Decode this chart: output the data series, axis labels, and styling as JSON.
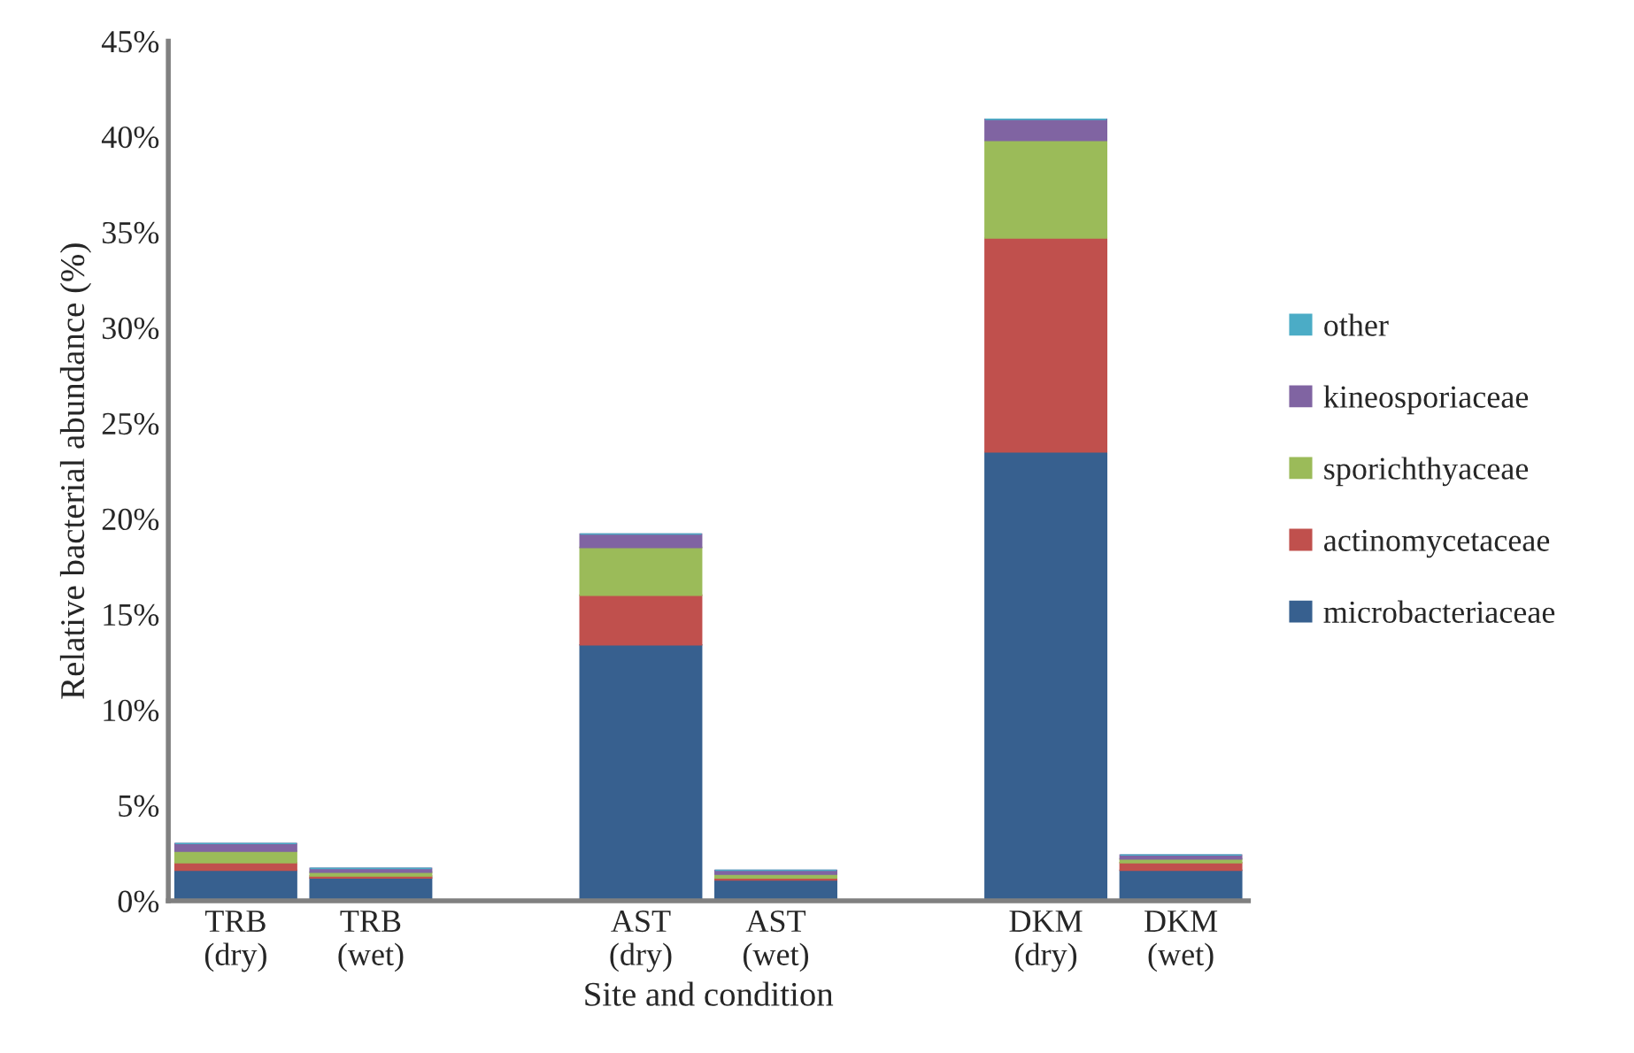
{
  "chart_data": {
    "type": "bar",
    "stacked": true,
    "xlabel": "Site and condition",
    "ylabel": "Relative bacterial abundance (%)",
    "categories": [
      "TRB\n(dry)",
      "TRB\n(wet)",
      null,
      "AST\n(dry)",
      "AST\n(wet)",
      null,
      "DKM\n(dry)",
      "DKM\n(wet)"
    ],
    "series": [
      {
        "name": "microbacteriaceae",
        "color": "#37608f",
        "values": [
          1.6,
          1.2,
          null,
          13.4,
          1.1,
          null,
          23.5,
          1.6
        ]
      },
      {
        "name": "actinomycetaceae",
        "color": "#c0504d",
        "values": [
          0.4,
          0.1,
          null,
          2.6,
          0.1,
          null,
          11.2,
          0.4
        ]
      },
      {
        "name": "sporichthyaceae",
        "color": "#9bbb59",
        "values": [
          0.6,
          0.2,
          null,
          2.5,
          0.2,
          null,
          5.1,
          0.2
        ]
      },
      {
        "name": "kineosporiaceae",
        "color": "#8064a2",
        "values": [
          0.4,
          0.2,
          null,
          0.7,
          0.2,
          null,
          1.1,
          0.2
        ]
      },
      {
        "name": "other",
        "color": "#4bacc6",
        "values": [
          0,
          0,
          null,
          0,
          0,
          null,
          0,
          0
        ]
      }
    ],
    "ylim": [
      0,
      45
    ],
    "yticks": [
      {
        "value": 0,
        "label": "0%"
      },
      {
        "value": 5,
        "label": "5%"
      },
      {
        "value": 10,
        "label": "10%"
      },
      {
        "value": 15,
        "label": "15%"
      },
      {
        "value": 20,
        "label": "20%"
      },
      {
        "value": 25,
        "label": "25%"
      },
      {
        "value": 30,
        "label": "30%"
      },
      {
        "value": 35,
        "label": "35%"
      },
      {
        "value": 40,
        "label": "40%"
      },
      {
        "value": 45,
        "label": "45%"
      }
    ],
    "grid": false,
    "legend": "right"
  }
}
